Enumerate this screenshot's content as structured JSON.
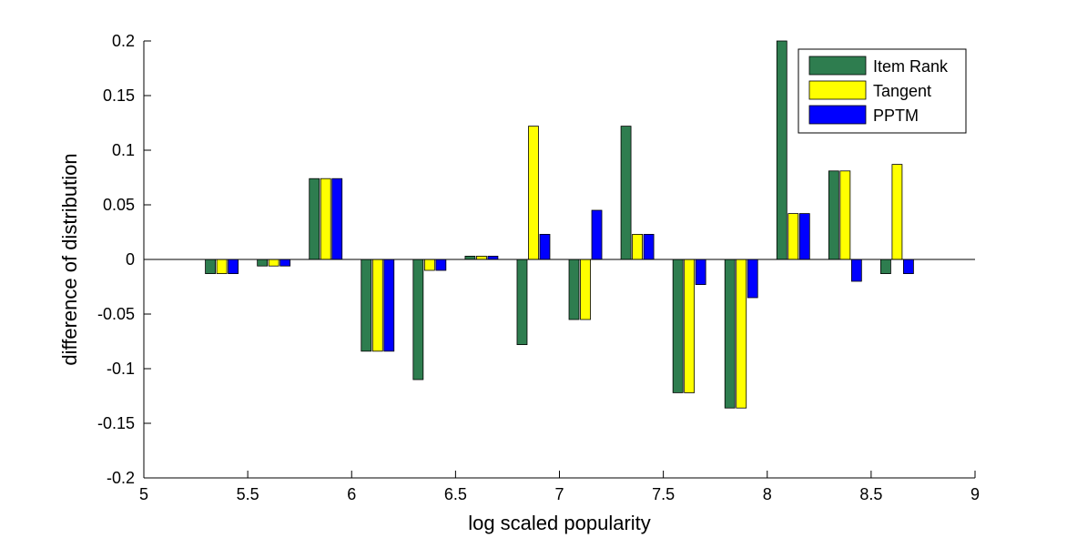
{
  "chart_data": {
    "type": "bar",
    "title": "",
    "xlabel": "log scaled popularity",
    "ylabel": "difference of distribution",
    "xlim": [
      5,
      9
    ],
    "ylim": [
      -0.2,
      0.2
    ],
    "xticks": [
      5,
      5.5,
      6,
      6.5,
      7,
      7.5,
      8,
      8.5,
      9
    ],
    "xtick_labels": [
      "5",
      "5.5",
      "6",
      "6.5",
      "7",
      "7.5",
      "8",
      "8.5",
      "9"
    ],
    "yticks": [
      -0.2,
      -0.15,
      -0.1,
      -0.05,
      0,
      0.05,
      0.1,
      0.15,
      0.2
    ],
    "ytick_labels": [
      "-0.2",
      "-0.15",
      "-0.1",
      "-0.05",
      "0",
      "0.05",
      "0.1",
      "0.15",
      "0.2"
    ],
    "grid": false,
    "legend_position": "top-right",
    "x": [
      5.375,
      5.625,
      5.875,
      6.125,
      6.375,
      6.625,
      6.875,
      7.125,
      7.375,
      7.625,
      7.875,
      8.125,
      8.375,
      8.625
    ],
    "series": [
      {
        "name": "Item Rank",
        "color": "#2e7d4f",
        "values": [
          -0.013,
          -0.006,
          0.074,
          -0.084,
          -0.11,
          0.003,
          -0.078,
          -0.055,
          0.122,
          -0.122,
          -0.136,
          0.2,
          0.081,
          -0.013
        ]
      },
      {
        "name": "Tangent",
        "color": "#ffff00",
        "values": [
          -0.013,
          -0.006,
          0.074,
          -0.084,
          -0.01,
          0.003,
          0.122,
          -0.055,
          0.023,
          -0.122,
          -0.136,
          0.042,
          0.081,
          0.087
        ]
      },
      {
        "name": "PPTM",
        "color": "#0000ff",
        "values": [
          -0.013,
          -0.006,
          0.074,
          -0.084,
          -0.01,
          0.003,
          0.023,
          0.045,
          0.023,
          -0.023,
          -0.035,
          0.042,
          -0.02,
          -0.013
        ]
      }
    ]
  }
}
